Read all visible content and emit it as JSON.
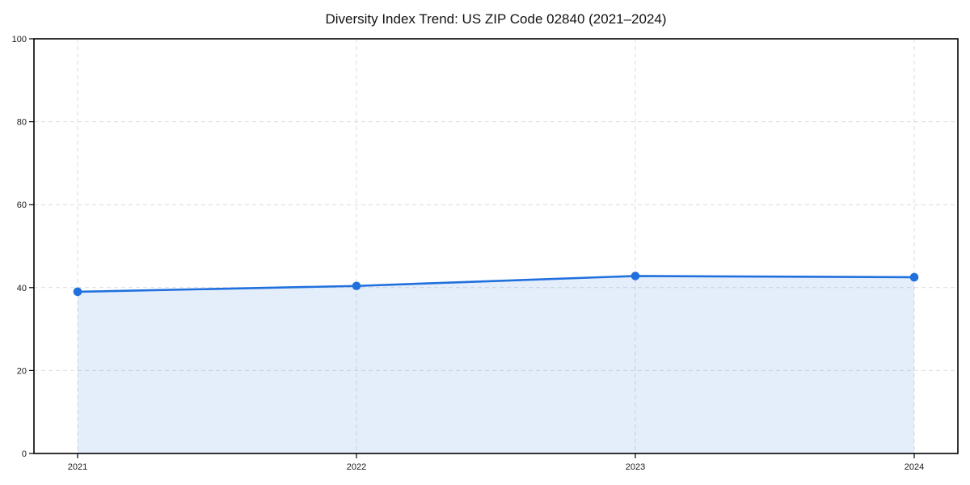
{
  "title": "Diversity Index Trend: US ZIP Code 02840 (2021–2024)",
  "chart_data": {
    "type": "area",
    "title": "Diversity Index Trend: US ZIP Code 02840 (2021–2024)",
    "xlabel": "",
    "ylabel": "",
    "x": [
      2021,
      2022,
      2023,
      2024
    ],
    "xtick_labels": [
      "2021",
      "2022",
      "2023",
      "2024"
    ],
    "series": [
      {
        "name": "Diversity Index",
        "values": [
          39.0,
          40.4,
          42.8,
          42.5
        ]
      }
    ],
    "ylim": [
      0,
      100
    ],
    "yticks": [
      0,
      20,
      40,
      60,
      80,
      100
    ],
    "ytick_labels": [
      "0",
      "20",
      "40",
      "60",
      "80",
      "100"
    ],
    "grid": "dashed",
    "legend_position": "none",
    "colors": {
      "line": "#2070dd",
      "marker": "#2070dd",
      "fill": "rgba(32, 112, 221, 0.12)",
      "grid": "#dcdcdc",
      "spine": "#000000",
      "tick_text": "#1a1a1a",
      "background": "#ffffff"
    }
  }
}
